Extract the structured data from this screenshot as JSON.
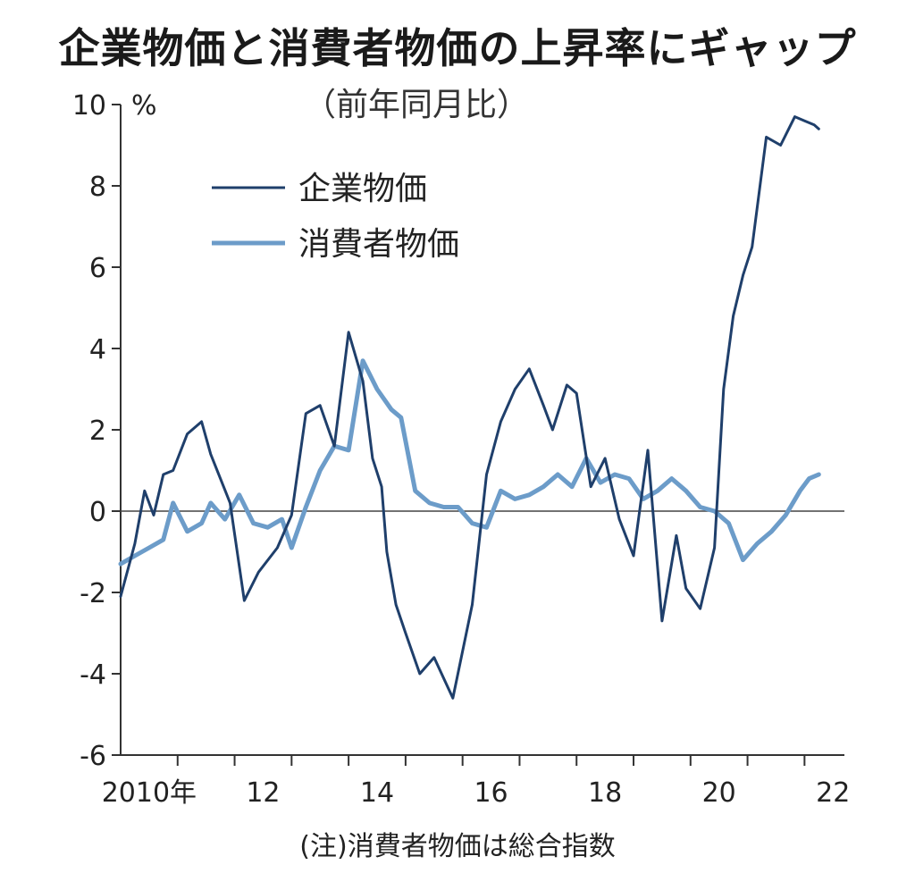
{
  "chart_data": {
    "type": "line",
    "title": "企業物価と消費者物価の上昇率にギャップ",
    "subtitle": "（前年同月比）",
    "y_unit": "%",
    "note": "(注)消費者物価は総合指数",
    "ylim": [
      -6,
      10
    ],
    "y_ticks": [
      10,
      8,
      6,
      4,
      2,
      0,
      -2,
      -4,
      -6
    ],
    "y_tick_labels": [
      "10",
      "8",
      "6",
      "4",
      "2",
      "0",
      "-2",
      "-4",
      "-6"
    ],
    "xlim": [
      2010.0,
      2022.7
    ],
    "x_tick_labels": [
      {
        "x": 2010,
        "label": "2010年"
      },
      {
        "x": 2012,
        "label": "12"
      },
      {
        "x": 2014,
        "label": "14"
      },
      {
        "x": 2016,
        "label": "16"
      },
      {
        "x": 2018,
        "label": "18"
      },
      {
        "x": 2020,
        "label": "20"
      },
      {
        "x": 2022,
        "label": "22"
      }
    ],
    "x_minor_ticks": [
      2011,
      2012,
      2013,
      2014,
      2015,
      2016,
      2017,
      2018,
      2019,
      2020,
      2021,
      2022
    ],
    "legend_position": "top-left",
    "series": [
      {
        "name": "企業物価",
        "color": "#1f3f6b",
        "x": [
          2010.0,
          2010.25,
          2010.42,
          2010.58,
          2010.75,
          2010.92,
          2011.17,
          2011.42,
          2011.58,
          2011.92,
          2012.17,
          2012.42,
          2012.75,
          2013.0,
          2013.25,
          2013.5,
          2013.75,
          2014.0,
          2014.25,
          2014.42,
          2014.58,
          2014.67,
          2014.83,
          2015.0,
          2015.25,
          2015.5,
          2015.83,
          2016.17,
          2016.42,
          2016.67,
          2016.92,
          2017.17,
          2017.42,
          2017.58,
          2017.83,
          2018.0,
          2018.25,
          2018.5,
          2018.75,
          2019.0,
          2019.25,
          2019.5,
          2019.75,
          2019.92,
          2020.17,
          2020.42,
          2020.58,
          2020.75,
          2020.92,
          2021.08,
          2021.33,
          2021.58,
          2021.83,
          2022.0,
          2022.17,
          2022.25
        ],
        "values": [
          -2.1,
          -0.8,
          0.5,
          -0.1,
          0.9,
          1.0,
          1.9,
          2.2,
          1.4,
          0.2,
          -2.2,
          -1.5,
          -0.9,
          -0.1,
          2.4,
          2.6,
          1.6,
          4.4,
          3.2,
          1.3,
          0.6,
          -1.0,
          -2.3,
          -3.0,
          -4.0,
          -3.6,
          -4.6,
          -2.3,
          0.9,
          2.2,
          3.0,
          3.5,
          2.6,
          2.0,
          3.1,
          2.9,
          0.6,
          1.3,
          -0.2,
          -1.1,
          1.5,
          -2.7,
          -0.6,
          -1.9,
          -2.4,
          -0.9,
          3.0,
          4.8,
          5.8,
          6.5,
          9.2,
          9.0,
          9.7,
          9.6,
          9.5,
          9.4
        ],
        "width": 3
      },
      {
        "name": "消費者物価",
        "color": "#6c9cc9",
        "x": [
          2010.0,
          2010.25,
          2010.5,
          2010.75,
          2010.92,
          2011.17,
          2011.42,
          2011.58,
          2011.83,
          2012.08,
          2012.33,
          2012.58,
          2012.83,
          2013.0,
          2013.25,
          2013.5,
          2013.75,
          2014.0,
          2014.25,
          2014.5,
          2014.75,
          2014.92,
          2015.17,
          2015.42,
          2015.67,
          2015.92,
          2016.17,
          2016.42,
          2016.67,
          2016.92,
          2017.17,
          2017.42,
          2017.67,
          2017.92,
          2018.17,
          2018.42,
          2018.67,
          2018.92,
          2019.17,
          2019.42,
          2019.67,
          2019.92,
          2020.17,
          2020.42,
          2020.67,
          2020.92,
          2021.17,
          2021.42,
          2021.67,
          2021.92,
          2022.08,
          2022.25
        ],
        "values": [
          -1.3,
          -1.1,
          -0.9,
          -0.7,
          0.2,
          -0.5,
          -0.3,
          0.2,
          -0.2,
          0.4,
          -0.3,
          -0.4,
          -0.2,
          -0.9,
          0.1,
          1.0,
          1.6,
          1.5,
          3.7,
          3.0,
          2.5,
          2.3,
          0.5,
          0.2,
          0.1,
          0.1,
          -0.3,
          -0.4,
          0.5,
          0.3,
          0.4,
          0.6,
          0.9,
          0.6,
          1.3,
          0.7,
          0.9,
          0.8,
          0.3,
          0.5,
          0.8,
          0.5,
          0.1,
          0.0,
          -0.3,
          -1.2,
          -0.8,
          -0.5,
          -0.1,
          0.5,
          0.8,
          0.9
        ],
        "width": 5
      }
    ]
  }
}
